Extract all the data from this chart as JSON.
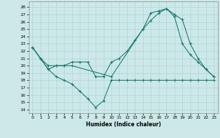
{
  "xlabel": "Humidex (Indice chaleur)",
  "background_color": "#cde8e8",
  "line_color": "#1a7a6e",
  "xlim": [
    -0.5,
    23.5
  ],
  "ylim": [
    13.5,
    28.8
  ],
  "xticks": [
    0,
    1,
    2,
    3,
    4,
    5,
    6,
    7,
    8,
    9,
    10,
    11,
    12,
    13,
    14,
    15,
    16,
    17,
    18,
    19,
    20,
    21,
    22,
    23
  ],
  "yticks": [
    14,
    15,
    16,
    17,
    18,
    19,
    20,
    21,
    22,
    23,
    24,
    25,
    26,
    27,
    28
  ],
  "series": [
    {
      "x": [
        0,
        1,
        2,
        3,
        4,
        5,
        6,
        7,
        8,
        9,
        10,
        11,
        12,
        13,
        14,
        15,
        16,
        17,
        18,
        19,
        20,
        21,
        22,
        23
      ],
      "y": [
        22.5,
        21.0,
        19.5,
        18.5,
        18.0,
        17.5,
        16.5,
        15.5,
        14.3,
        15.2,
        18.0,
        18.0,
        18.0,
        18.0,
        18.0,
        18.0,
        18.0,
        18.0,
        18.0,
        18.0,
        18.0,
        18.0,
        18.0,
        18.0
      ]
    },
    {
      "x": [
        0,
        1,
        2,
        3,
        4,
        5,
        6,
        7,
        8,
        9,
        10,
        11,
        12,
        13,
        14,
        15,
        16,
        17,
        18,
        19,
        20,
        21,
        22,
        23
      ],
      "y": [
        22.5,
        21.0,
        19.5,
        20.0,
        20.0,
        20.5,
        20.5,
        20.5,
        18.5,
        18.5,
        20.5,
        21.0,
        22.0,
        23.5,
        25.0,
        27.2,
        27.5,
        27.8,
        26.7,
        23.0,
        21.5,
        20.5,
        19.5,
        18.5
      ]
    },
    {
      "x": [
        0,
        1,
        2,
        3,
        4,
        5,
        10,
        14,
        15,
        16,
        17,
        18,
        19,
        20,
        21,
        22,
        23
      ],
      "y": [
        22.5,
        21.0,
        20.0,
        20.0,
        20.0,
        20.0,
        18.5,
        25.0,
        26.2,
        27.2,
        27.8,
        27.0,
        26.3,
        23.0,
        21.0,
        19.5,
        18.5
      ]
    }
  ]
}
